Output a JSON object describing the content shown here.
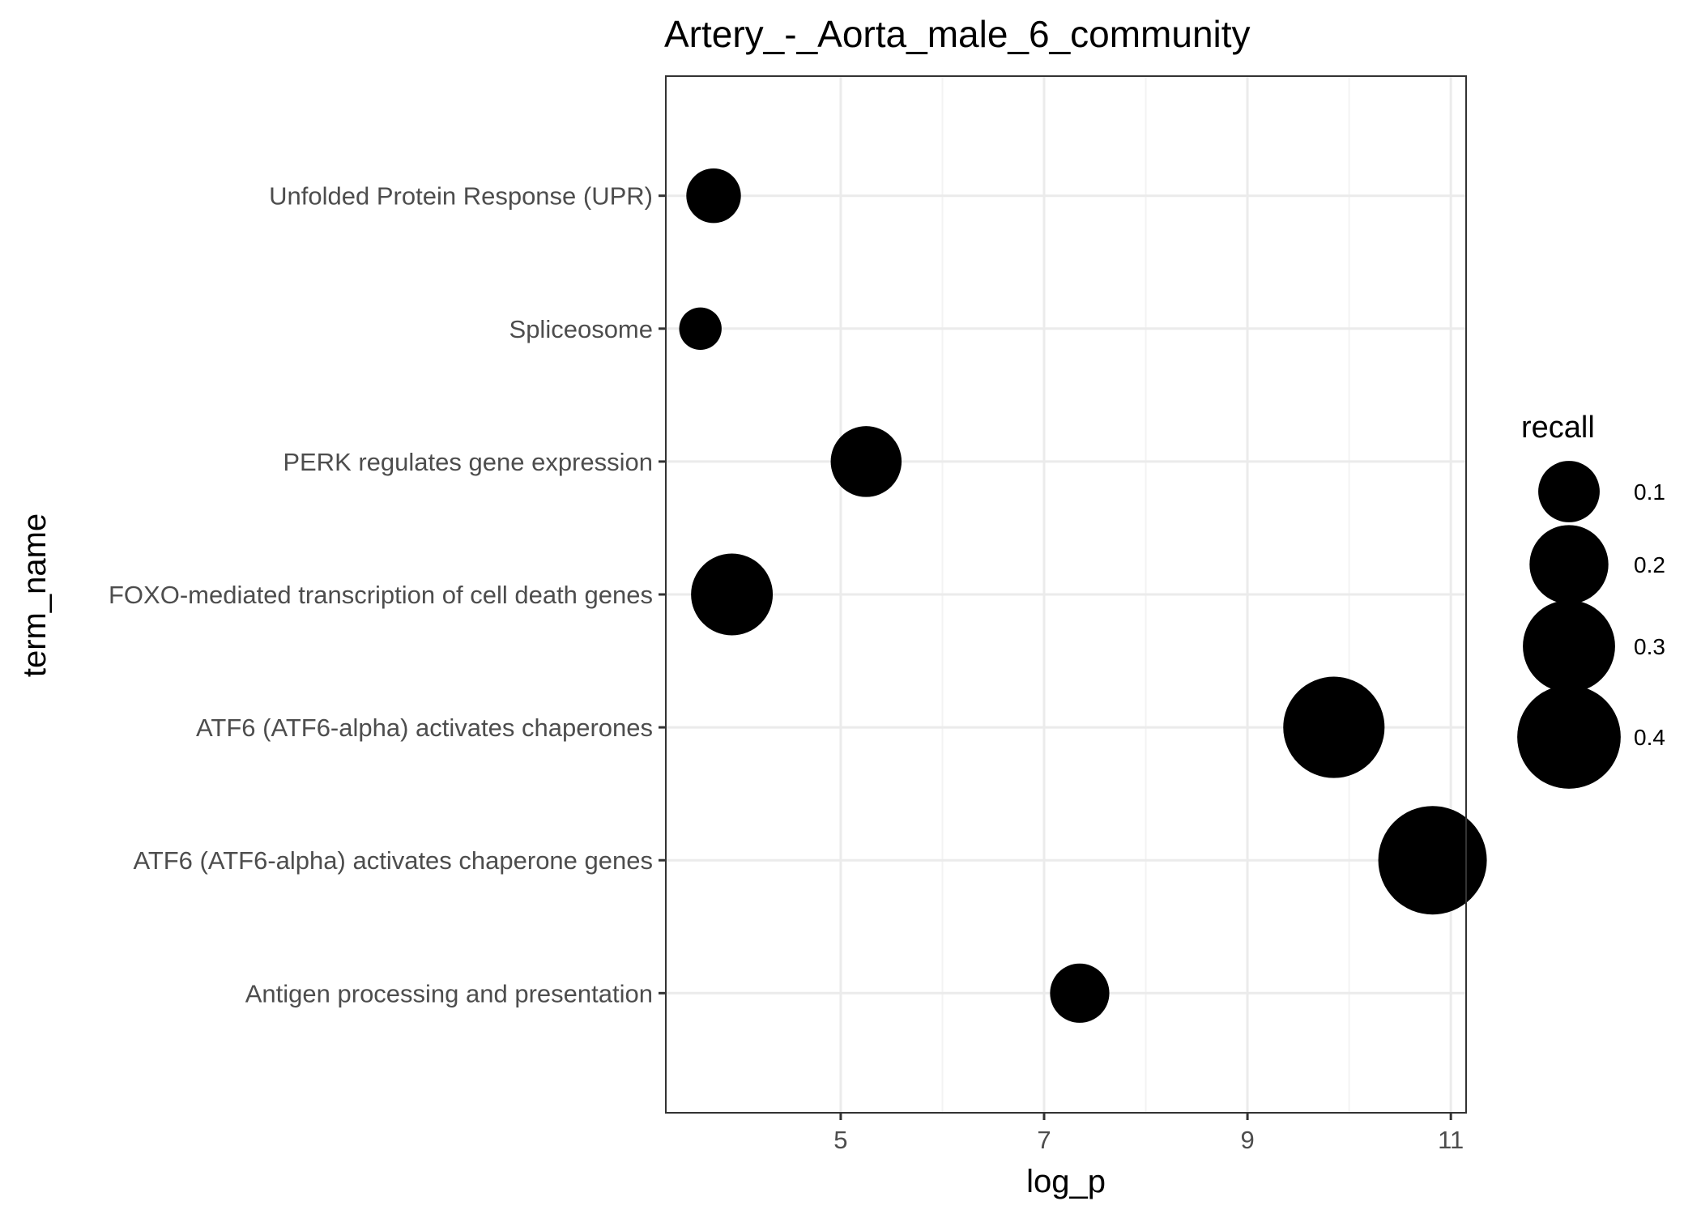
{
  "chart_data": {
    "type": "scatter",
    "title": "Artery_-_Aorta_male_6_community",
    "xlabel": "log_p",
    "ylabel": "term_name",
    "xlim": [
      3.28,
      11.15
    ],
    "x_ticks": [
      5,
      7,
      9,
      11
    ],
    "x_tick_labels": [
      "5",
      "7",
      "9",
      "11"
    ],
    "categories": [
      "Unfolded Protein Response (UPR)",
      "Spliceosome",
      "PERK regulates gene expression",
      "FOXO-mediated transcription of cell death genes",
      "ATF6 (ATF6-alpha) activates chaperones",
      "ATF6 (ATF6-alpha) activates chaperone genes",
      "Antigen processing and presentation"
    ],
    "points": [
      {
        "term": "Unfolded Protein Response (UPR)",
        "log_p": 3.75,
        "recall": 0.07
      },
      {
        "term": "Spliceosome",
        "log_p": 3.62,
        "recall": 0.03
      },
      {
        "term": "PERK regulates gene expression",
        "log_p": 5.25,
        "recall": 0.15
      },
      {
        "term": "FOXO-mediated transcription of cell death genes",
        "log_p": 3.93,
        "recall": 0.22
      },
      {
        "term": "ATF6 (ATF6-alpha) activates chaperones",
        "log_p": 9.85,
        "recall": 0.38
      },
      {
        "term": "ATF6 (ATF6-alpha) activates chaperone genes",
        "log_p": 10.82,
        "recall": 0.45
      },
      {
        "term": "Antigen processing and presentation",
        "log_p": 7.35,
        "recall": 0.09
      }
    ],
    "size_legend": {
      "title": "recall",
      "values": [
        0.1,
        0.2,
        0.3,
        0.4
      ],
      "labels": [
        "0.1",
        "0.2",
        "0.3",
        "0.4"
      ]
    },
    "grid": true,
    "legend_position": "right",
    "colors": {
      "point": "#000000",
      "grid_major": "#ebebeb",
      "grid_minor": "#f3f3f3",
      "panel_border": "#333333",
      "tick_label": "#4d4d4d"
    }
  }
}
